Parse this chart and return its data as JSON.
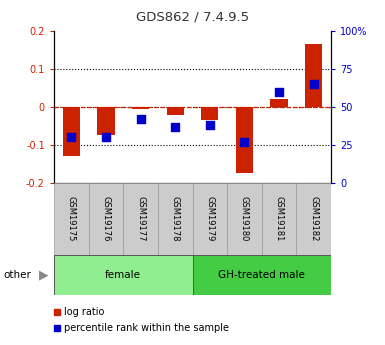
{
  "title": "GDS862 / 7.4.9.5",
  "samples": [
    "GSM19175",
    "GSM19176",
    "GSM19177",
    "GSM19178",
    "GSM19179",
    "GSM19180",
    "GSM19181",
    "GSM19182"
  ],
  "log_ratio": [
    -0.13,
    -0.075,
    -0.005,
    -0.02,
    -0.035,
    -0.175,
    0.02,
    0.165
  ],
  "percentile_rank": [
    30,
    30,
    42,
    37,
    38,
    27,
    60,
    65
  ],
  "ylim_left": [
    -0.2,
    0.2
  ],
  "ylim_right": [
    0,
    100
  ],
  "yticks_left": [
    -0.2,
    -0.1,
    0.0,
    0.1,
    0.2
  ],
  "yticks_right": [
    0,
    25,
    50,
    75,
    100
  ],
  "groups": [
    {
      "label": "female",
      "start": 0,
      "end": 4,
      "color": "#90EE90"
    },
    {
      "label": "GH-treated male",
      "start": 4,
      "end": 8,
      "color": "#44CC44"
    }
  ],
  "bar_color": "#CC2200",
  "dot_color": "#0000CC",
  "left_tick_color": "#CC2200",
  "right_tick_color": "#0000CC",
  "bar_width": 0.5,
  "dot_size": 28,
  "background_color": "#ffffff",
  "plot_bg_color": "#ffffff",
  "zero_line_color": "#CC2200",
  "sample_box_color": "#CCCCCC",
  "sample_box_edge": "#999999"
}
